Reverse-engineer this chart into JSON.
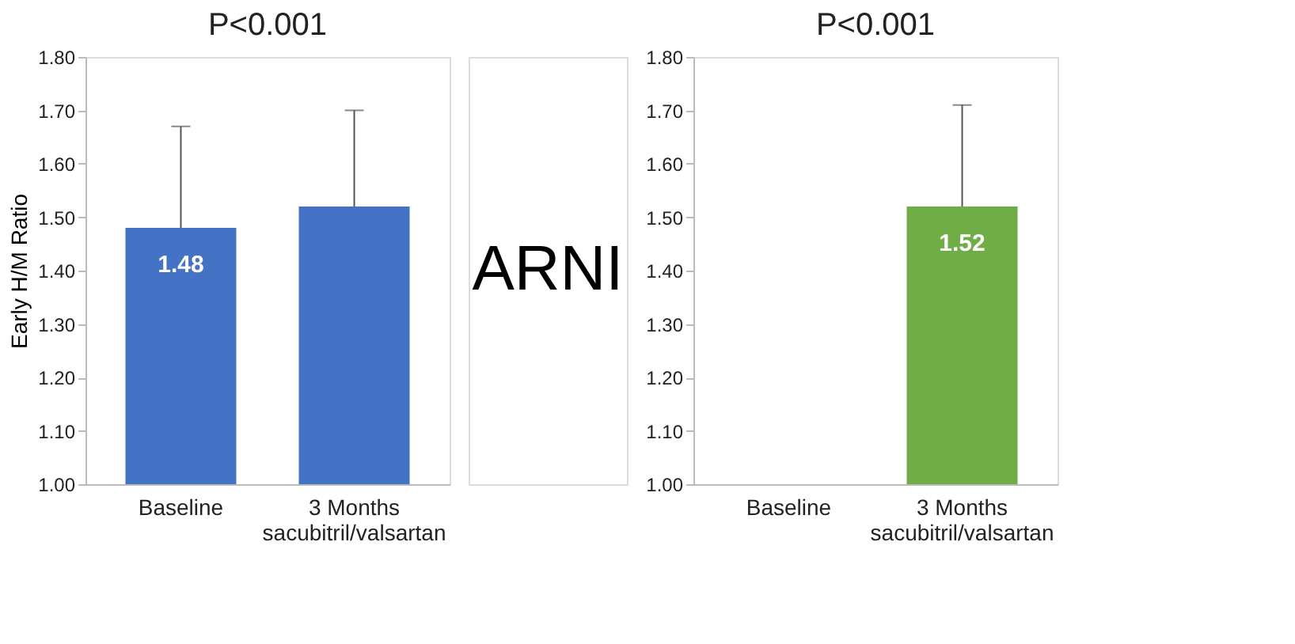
{
  "chart_data": [
    {
      "type": "bar",
      "title": "P<0.001",
      "ylabel": "Early H/M Ratio",
      "categories": [
        "Baseline",
        "3 Months\nsacubitril/valsartan"
      ],
      "series": [
        {
          "color": "#4472c4",
          "values": [
            1.48,
            1.52
          ],
          "errors": [
            [
              1.48,
              1.67
            ],
            [
              1.52,
              1.7
            ]
          ],
          "value_labels": [
            "1.48",
            null
          ]
        }
      ],
      "ylim": [
        1.0,
        1.8
      ],
      "yticks": [
        {
          "value": 1.0,
          "label": "1.00"
        },
        {
          "value": 1.1,
          "label": "1.10"
        },
        {
          "value": 1.2,
          "label": "1.20"
        },
        {
          "value": 1.3,
          "label": "1.30"
        },
        {
          "value": 1.4,
          "label": "1.40"
        },
        {
          "value": 1.5,
          "label": "1.50"
        },
        {
          "value": 1.6,
          "label": "1.60"
        },
        {
          "value": 1.7,
          "label": "1.70"
        },
        {
          "value": 1.8,
          "label": "1.80"
        }
      ],
      "grid": false
    },
    {
      "type": "bar",
      "title": "P<0.001",
      "annotations": [
        "ARNI"
      ],
      "categories": [
        "Baseline",
        "3 Months\nsacubitril/valsartan"
      ],
      "series": [
        {
          "color": "#70ad47",
          "values": [
            null,
            1.52
          ],
          "errors": [
            null,
            [
              1.52,
              1.71
            ]
          ],
          "value_labels": [
            null,
            "1.52"
          ]
        }
      ],
      "ylim": [
        1.0,
        1.8
      ],
      "yticks": [
        {
          "value": 1.0,
          "label": "1.00"
        },
        {
          "value": 1.1,
          "label": "1.10"
        },
        {
          "value": 1.2,
          "label": "1.20"
        },
        {
          "value": 1.3,
          "label": "1.30"
        },
        {
          "value": 1.4,
          "label": "1.40"
        },
        {
          "value": 1.5,
          "label": "1.50"
        },
        {
          "value": 1.6,
          "label": "1.60"
        },
        {
          "value": 1.7,
          "label": "1.70"
        },
        {
          "value": 1.8,
          "label": "1.80"
        }
      ],
      "grid": false
    }
  ]
}
